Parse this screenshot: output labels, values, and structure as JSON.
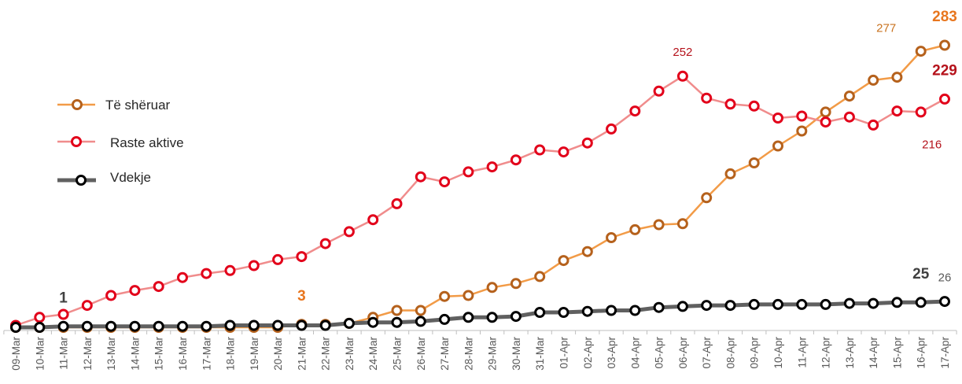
{
  "chart_data": {
    "type": "line",
    "categories": [
      "09-Mar",
      "10-Mar",
      "11-Mar",
      "12-Mar",
      "13-Mar",
      "14-Mar",
      "15-Mar",
      "16-Mar",
      "17-Mar",
      "18-Mar",
      "19-Mar",
      "20-Mar",
      "21-Mar",
      "22-Mar",
      "23-Mar",
      "24-Mar",
      "25-Mar",
      "26-Mar",
      "27-Mar",
      "28-Mar",
      "29-Mar",
      "30-Mar",
      "31-Mar",
      "01-Apr",
      "02-Apr",
      "03-Apr",
      "04-Apr",
      "05-Apr",
      "06-Apr",
      "07-Apr",
      "08-Apr",
      "09-Apr",
      "10-Apr",
      "11-Apr",
      "12-Apr",
      "13-Apr",
      "14-Apr",
      "15-Apr",
      "16-Apr",
      "17-Apr"
    ],
    "series": [
      {
        "name": "Të shëruar",
        "color": "#F29B47",
        "marker_color": "#B5611C",
        "values": [
          0,
          0,
          0,
          0,
          0,
          0,
          0,
          0,
          0,
          0,
          0,
          0,
          3,
          3,
          4,
          10,
          17,
          17,
          31,
          32,
          40,
          44,
          51,
          67,
          76,
          90,
          98,
          103,
          104,
          130,
          154,
          165,
          182,
          197,
          216,
          232,
          248,
          251,
          277,
          283
        ]
      },
      {
        "name": "Raste aktive",
        "color": "#F08C8C",
        "marker_color": "#E2001A",
        "values": [
          2,
          10,
          13,
          22,
          32,
          37,
          41,
          50,
          54,
          57,
          62,
          68,
          71,
          84,
          96,
          108,
          124,
          151,
          146,
          156,
          161,
          168,
          178,
          176,
          185,
          199,
          217,
          237,
          252,
          230,
          224,
          222,
          210,
          212,
          206,
          211,
          203,
          217,
          216,
          229
        ]
      },
      {
        "name": "Vdekje",
        "color": "#606060",
        "marker_color": "#000000",
        "values": [
          0,
          0,
          1,
          1,
          1,
          1,
          1,
          1,
          1,
          2,
          2,
          2,
          2,
          2,
          4,
          5,
          5,
          6,
          8,
          10,
          10,
          11,
          15,
          15,
          16,
          17,
          17,
          20,
          21,
          22,
          22,
          23,
          23,
          23,
          23,
          24,
          24,
          25,
          25,
          26
        ]
      }
    ],
    "ylim": [
      0,
      300
    ],
    "grid": false,
    "legend_placement": "left",
    "data_labels": [
      {
        "series": "Vdekje",
        "category": "11-Mar",
        "text": "1",
        "placement": "above",
        "weight": "bold",
        "color": "#404040"
      },
      {
        "series": "Të shëruar",
        "category": "21-Mar",
        "text": "3",
        "placement": "above",
        "weight": "bold",
        "color": "#E8761E"
      },
      {
        "series": "Raste aktive",
        "category": "06-Apr",
        "text": "252",
        "placement": "above",
        "weight": "normal",
        "color": "#B5121B"
      },
      {
        "series": "Të shëruar",
        "category": "16-Apr",
        "text": "277",
        "placement": "above-left",
        "weight": "normal",
        "color": "#C9731F"
      },
      {
        "series": "Të shëruar",
        "category": "17-Apr",
        "text": "283",
        "placement": "above",
        "weight": "bold",
        "color": "#E8761E"
      },
      {
        "series": "Raste aktive",
        "category": "17-Apr",
        "text": "229",
        "placement": "above",
        "weight": "bold",
        "color": "#B5121B"
      },
      {
        "series": "Raste aktive",
        "category": "16-Apr",
        "text": "216",
        "placement": "below-right",
        "weight": "normal",
        "color": "#B5121B"
      },
      {
        "series": "Vdekje",
        "category": "16-Apr",
        "text": "25",
        "placement": "above",
        "weight": "bold",
        "color": "#404040"
      },
      {
        "series": "Vdekje",
        "category": "17-Apr",
        "text": "26",
        "placement": "above",
        "weight": "normal",
        "color": "#595959"
      }
    ]
  }
}
